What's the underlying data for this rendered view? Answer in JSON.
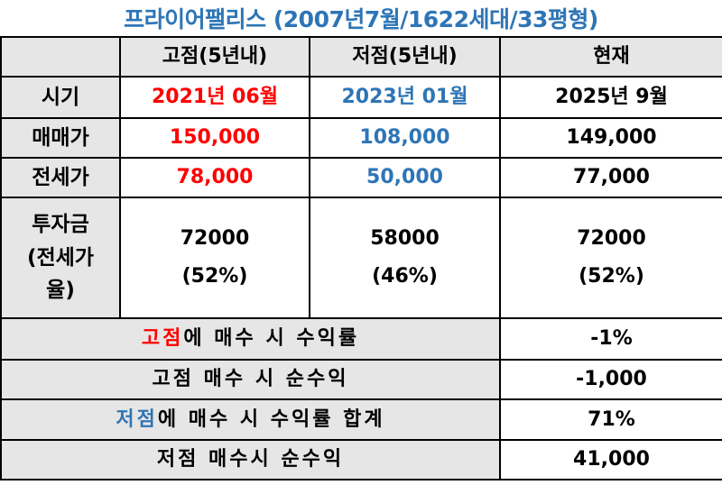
{
  "title": "프라이어팰리스 (2007년7월/1622세대/33평형)",
  "colors": {
    "accent_blue": "#2e75b6",
    "accent_red": "#ff0000",
    "header_gray": "#e7e6e6"
  },
  "header": {
    "col1": "고점(5년내)",
    "col2": "저점(5년내)",
    "col3": "현재"
  },
  "rows": {
    "period": {
      "label": "시기",
      "high": "2021년 06월",
      "low": "2023년 01월",
      "now": "2025년 9월"
    },
    "sale": {
      "label": "매매가",
      "high": "150,000",
      "low": "108,000",
      "now": "149,000"
    },
    "jeonse": {
      "label": "전세가",
      "high": "78,000",
      "low": "50,000",
      "now": "77,000"
    },
    "invest": {
      "label_line1": "투자금",
      "label_line2": "(전세가",
      "label_line3": "율)",
      "high_value": "72000",
      "high_pct": "(52%)",
      "low_value": "58000",
      "low_pct": "(46%)",
      "now_value": "72000",
      "now_pct": "(52%)"
    }
  },
  "summary": {
    "high_return": {
      "highlight": "고점",
      "rest": "에 매수 시 수익률",
      "value": "-1%"
    },
    "high_profit": {
      "label": "고점 매수 시 순수익",
      "value": "-1,000"
    },
    "low_return": {
      "highlight": "저점",
      "rest": "에 매수 시 수익률 합계",
      "value": "71%"
    },
    "low_profit": {
      "label": "저점 매수시 순수익",
      "value": "41,000"
    }
  }
}
